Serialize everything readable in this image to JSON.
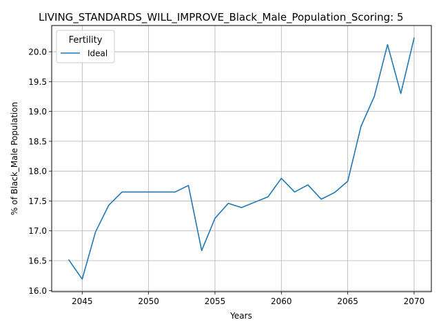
{
  "chart_data": {
    "type": "line",
    "title": "LIVING_STANDARDS_WILL_IMPROVE_Black_Male_Population_Scoring: 5",
    "xlabel": "Years",
    "ylabel": "% of Black_Male Population",
    "xlim": [
      2042.7,
      2071.3
    ],
    "ylim": [
      15.98,
      20.44
    ],
    "xticks": [
      2045,
      2050,
      2055,
      2060,
      2065,
      2070
    ],
    "yticks": [
      16.0,
      16.5,
      17.0,
      17.5,
      18.0,
      18.5,
      19.0,
      19.5,
      20.0
    ],
    "xtick_labels": [
      "2045",
      "2050",
      "2055",
      "2060",
      "2065",
      "2070"
    ],
    "ytick_labels": [
      "16.0",
      "16.5",
      "17.0",
      "17.5",
      "18.0",
      "18.5",
      "19.0",
      "19.5",
      "20.0"
    ],
    "grid": true,
    "legend": {
      "title": "Fertility",
      "placement": "top-left"
    },
    "series": [
      {
        "name": "Ideal",
        "color": "#1f77b4",
        "x": [
          2044,
          2045,
          2046,
          2047,
          2048,
          2049,
          2050,
          2051,
          2052,
          2053,
          2054,
          2055,
          2056,
          2057,
          2058,
          2059,
          2060,
          2061,
          2062,
          2063,
          2064,
          2065,
          2066,
          2067,
          2068,
          2069,
          2070
        ],
        "y": [
          16.51,
          16.19,
          16.98,
          17.43,
          17.65,
          17.65,
          17.65,
          17.65,
          17.65,
          17.76,
          16.67,
          17.21,
          17.46,
          17.39,
          17.48,
          17.57,
          17.88,
          17.65,
          17.77,
          17.53,
          17.64,
          17.83,
          18.75,
          19.25,
          20.12,
          19.3,
          20.23
        ]
      }
    ]
  }
}
